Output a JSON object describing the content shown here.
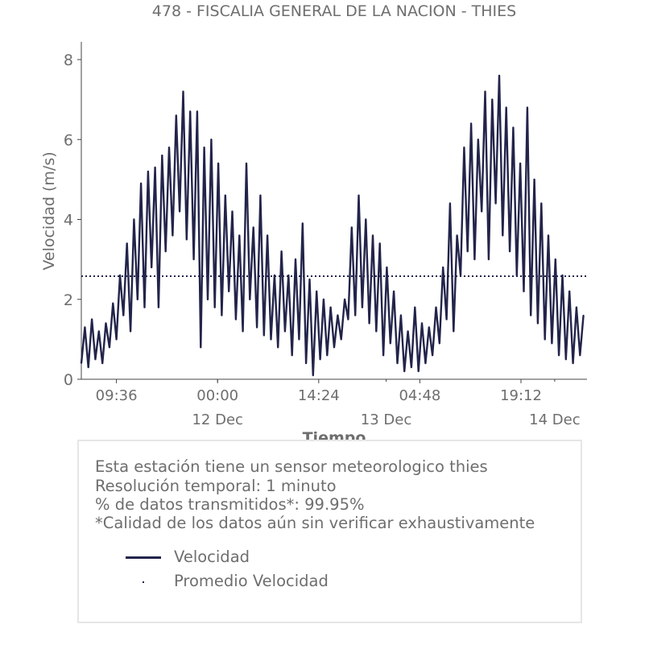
{
  "chart_data": {
    "type": "line",
    "title": "478 - FISCALIA GENERAL DE LA NACION - THIES",
    "xlabel": "Tiempo",
    "ylabel": "Velocidad (m/s)",
    "xlim": [
      "11 Dec 04:36",
      "14 Dec 04:36"
    ],
    "ylim": [
      0,
      8.0
    ],
    "y_ticks": [
      "0",
      "2",
      "4",
      "6",
      "8"
    ],
    "x_major_ticks": [
      {
        "time": "11 Dec 09:36",
        "label": "09:36"
      },
      {
        "time": "12 Dec 00:00",
        "label": "00:00"
      },
      {
        "time": "12 Dec 14:24",
        "label": "14:24"
      },
      {
        "time": "13 Dec 04:48",
        "label": "04:48"
      },
      {
        "time": "13 Dec 19:12",
        "label": "19:12"
      }
    ],
    "x_minor_ticks": [
      {
        "time": "12 Dec 00:00",
        "label": "12 Dec"
      },
      {
        "time": "13 Dec 00:00",
        "label": "13 Dec"
      },
      {
        "time": "14 Dec 00:00",
        "label": "14 Dec"
      }
    ],
    "grid": false,
    "series": [
      {
        "name": "Velocidad",
        "color": "#22244a",
        "start": "11 Dec 04:36",
        "step_minutes": 30,
        "values": [
          0.4,
          1.3,
          0.3,
          1.5,
          0.5,
          1.2,
          0.4,
          1.4,
          0.8,
          1.9,
          1.0,
          2.6,
          1.6,
          3.4,
          1.2,
          4.0,
          2.0,
          4.9,
          1.8,
          5.2,
          2.8,
          5.3,
          1.8,
          5.6,
          3.2,
          5.8,
          3.6,
          6.6,
          4.2,
          7.2,
          3.5,
          6.7,
          3.0,
          6.7,
          0.8,
          5.8,
          2.0,
          6.0,
          1.8,
          5.4,
          1.6,
          4.6,
          2.2,
          4.2,
          1.5,
          3.6,
          1.2,
          5.4,
          2.0,
          3.8,
          1.3,
          4.6,
          1.1,
          3.6,
          1.0,
          2.6,
          0.8,
          3.2,
          1.2,
          2.6,
          0.6,
          3.0,
          1.0,
          3.9,
          0.4,
          2.5,
          0.1,
          2.2,
          0.5,
          2.0,
          0.6,
          1.8,
          0.8,
          1.6,
          1.0,
          2.0,
          1.5,
          3.8,
          1.6,
          4.6,
          1.8,
          4.0,
          1.4,
          3.6,
          1.2,
          3.4,
          0.6,
          2.8,
          0.9,
          2.2,
          0.4,
          1.6,
          0.2,
          1.2,
          0.3,
          1.8,
          0.2,
          1.4,
          0.4,
          1.3,
          0.6,
          1.8,
          0.9,
          2.8,
          1.5,
          4.4,
          1.2,
          3.6,
          2.6,
          5.8,
          3.2,
          6.4,
          3.0,
          6.0,
          4.2,
          7.2,
          3.0,
          7.0,
          4.4,
          7.6,
          3.6,
          6.8,
          3.2,
          6.3,
          2.6,
          5.4,
          2.2,
          6.8,
          1.6,
          5.0,
          1.4,
          4.4,
          1.0,
          3.6,
          0.9,
          3.0,
          0.6,
          2.6,
          0.5,
          2.2,
          0.4,
          1.8,
          0.6,
          1.6
        ]
      },
      {
        "name": "Promedio Velocidad",
        "color": "#22244a",
        "style": "dotted",
        "value": 2.58
      }
    ],
    "legend": "bottom-inside-box"
  },
  "info": {
    "lines": [
      "Esta estación tiene un sensor meteorologico thies",
      "Resolución temporal: 1 minuto",
      "% de datos transmitidos*: 99.95%",
      "*Calidad de los datos aún sin verificar exhaustivamente"
    ]
  },
  "legend": {
    "items": [
      "Velocidad",
      "Promedio Velocidad"
    ]
  }
}
